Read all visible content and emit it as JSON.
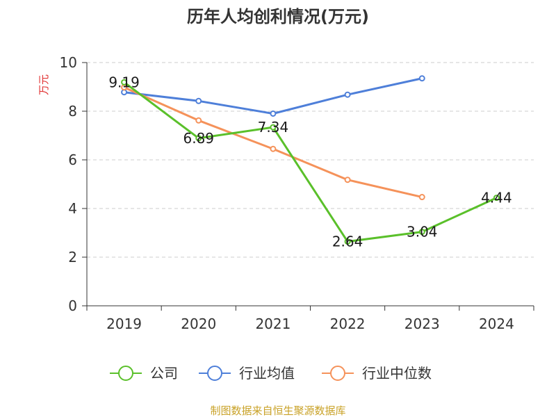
{
  "chart_data": {
    "type": "line",
    "title": "历年人均创利情况(万元)",
    "xlabel": "",
    "ylabel": "万元",
    "ylim": [
      0,
      10
    ],
    "yticks": [
      0,
      2,
      4,
      6,
      8,
      10
    ],
    "grid": true,
    "categories": [
      "2019",
      "2020",
      "2021",
      "2022",
      "2023",
      "2024"
    ],
    "series": [
      {
        "name": "公司",
        "color": "#5ac02a",
        "values": [
          9.19,
          6.89,
          7.34,
          2.64,
          3.04,
          4.44
        ],
        "labels": [
          "9.19",
          "6.89",
          "7.34",
          "2.64",
          "3.04",
          "4.44"
        ]
      },
      {
        "name": "行业均值",
        "color": "#4e7fd9",
        "values": [
          8.78,
          8.42,
          7.9,
          8.68,
          9.35,
          null
        ]
      },
      {
        "name": "行业中位数",
        "color": "#f5925a",
        "values": [
          8.98,
          7.62,
          6.45,
          5.18,
          4.47,
          null
        ]
      }
    ],
    "legend_position": "bottom",
    "ylabel_color": "#e03030",
    "source_color": "#c9a227",
    "source_text": "制图数据来自恒生聚源数据库"
  }
}
